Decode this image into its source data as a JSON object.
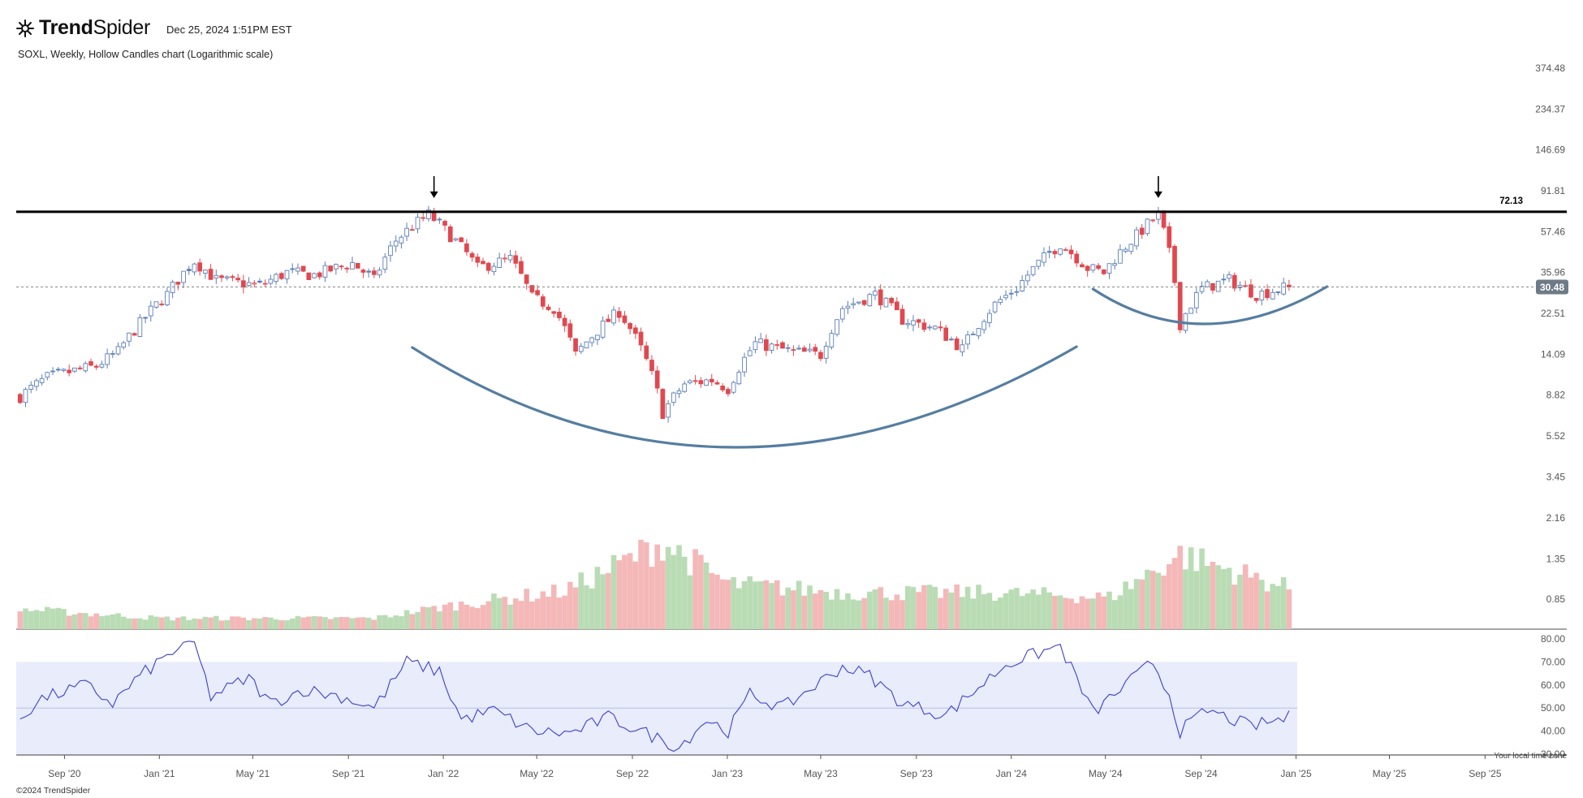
{
  "header": {
    "logo_text_bold": "Trend",
    "logo_text_rest": "Spider",
    "timestamp": "Dec 25, 2024 1:51PM EST",
    "subtitle": "SOXL, Weekly, Hollow Candles chart (Logarithmic scale)"
  },
  "footer": {
    "copyright": "©2024 TrendSpider",
    "timezone_note": "Your local time zone"
  },
  "colors": {
    "up": "#5b7fb8",
    "down": "#e0484f",
    "vol_up": "#b9dcb4",
    "vol_down": "#f4b8b8",
    "rsi_line": "#4040c8",
    "rsi_band": "#e8ecfb",
    "arc": "#557ea0",
    "resistance": "#000000",
    "price_badge": "#6e7a85"
  },
  "chart_data": {
    "type": "candlestick",
    "symbol": "SOXL",
    "interval": "Weekly",
    "scale": "log",
    "y_ticks": [
      "374.48",
      "234.37",
      "146.69",
      "91.81",
      "57.46",
      "35.96",
      "22.51",
      "14.09",
      "8.82",
      "5.52",
      "3.45",
      "2.16",
      "1.35",
      "0.85"
    ],
    "x_ticks": [
      "Sep '20",
      "Jan '21",
      "May '21",
      "Sep '21",
      "Jan '22",
      "May '22",
      "Sep '22",
      "Jan '23",
      "May '23",
      "Sep '23",
      "Jan '24",
      "May '24",
      "Sep '24",
      "Jan '25",
      "May '25",
      "Sep '25"
    ],
    "resistance_level": "72.13",
    "last_price": "30.48",
    "close_series_anchors": [
      [
        "2020-07-06",
        8.7
      ],
      [
        "2020-08-10",
        10.8
      ],
      [
        "2020-09-07",
        11.5
      ],
      [
        "2020-10-12",
        12.3
      ],
      [
        "2020-11-09",
        14.5
      ],
      [
        "2020-12-07",
        20
      ],
      [
        "2021-01-11",
        28
      ],
      [
        "2021-02-15",
        41
      ],
      [
        "2021-03-15",
        33
      ],
      [
        "2021-05-10",
        31
      ],
      [
        "2021-06-14",
        36
      ],
      [
        "2021-07-19",
        35
      ],
      [
        "2021-09-06",
        40
      ],
      [
        "2021-10-04",
        33
      ],
      [
        "2021-11-01",
        52
      ],
      [
        "2021-12-13",
        70
      ],
      [
        "2022-01-10",
        55
      ],
      [
        "2022-02-14",
        38
      ],
      [
        "2022-03-28",
        42
      ],
      [
        "2022-04-25",
        27
      ],
      [
        "2022-05-23",
        24
      ],
      [
        "2022-06-20",
        14
      ],
      [
        "2022-08-15",
        23
      ],
      [
        "2022-09-12",
        15
      ],
      [
        "2022-10-10",
        7.2
      ],
      [
        "2022-11-07",
        10
      ],
      [
        "2022-12-12",
        10.5
      ],
      [
        "2023-01-02",
        9.5
      ],
      [
        "2023-02-06",
        16
      ],
      [
        "2023-03-27",
        14.5
      ],
      [
        "2023-05-01",
        14
      ],
      [
        "2023-05-29",
        24
      ],
      [
        "2023-07-10",
        28
      ],
      [
        "2023-08-14",
        21
      ],
      [
        "2023-09-25",
        19
      ],
      [
        "2023-10-30",
        15
      ],
      [
        "2023-12-11",
        25
      ],
      [
        "2024-01-08",
        30
      ],
      [
        "2024-03-04",
        50
      ],
      [
        "2024-04-08",
        38
      ],
      [
        "2024-04-29",
        36
      ],
      [
        "2024-06-10",
        55
      ],
      [
        "2024-07-08",
        70
      ],
      [
        "2024-08-05",
        20
      ],
      [
        "2024-09-02",
        30
      ],
      [
        "2024-10-07",
        33
      ],
      [
        "2024-11-11",
        28
      ],
      [
        "2024-12-23",
        30.48
      ]
    ],
    "volume_relative_series_anchors": [
      [
        "2020-07-06",
        0.22
      ],
      [
        "2021-01-04",
        0.12
      ],
      [
        "2021-10-04",
        0.12
      ],
      [
        "2022-01-03",
        0.25
      ],
      [
        "2022-06-06",
        0.42
      ],
      [
        "2022-10-10",
        0.95
      ],
      [
        "2023-01-02",
        0.5
      ],
      [
        "2023-06-05",
        0.4
      ],
      [
        "2023-12-04",
        0.4
      ],
      [
        "2024-05-06",
        0.35
      ],
      [
        "2024-08-05",
        0.82
      ],
      [
        "2024-12-23",
        0.45
      ]
    ],
    "rsi_axis": [
      "80.00",
      "70.00",
      "60.00",
      "50.00",
      "40.00",
      "30.00"
    ],
    "rsi_band": [
      30,
      70
    ],
    "rsi_midline": 50,
    "rsi_series_anchors": [
      [
        "2020-07-06",
        46
      ],
      [
        "2020-08-03",
        54
      ],
      [
        "2020-09-28",
        60
      ],
      [
        "2020-11-02",
        52
      ],
      [
        "2020-12-07",
        64
      ],
      [
        "2021-01-25",
        76
      ],
      [
        "2021-02-15",
        78
      ],
      [
        "2021-03-08",
        55
      ],
      [
        "2021-04-26",
        63
      ],
      [
        "2021-05-24",
        52
      ],
      [
        "2021-07-05",
        58
      ],
      [
        "2021-08-23",
        55
      ],
      [
        "2021-10-04",
        50
      ],
      [
        "2021-11-15",
        70
      ],
      [
        "2021-12-27",
        66
      ],
      [
        "2022-01-24",
        45
      ],
      [
        "2022-03-07",
        49
      ],
      [
        "2022-04-25",
        40
      ],
      [
        "2022-06-13",
        39
      ],
      [
        "2022-08-01",
        46
      ],
      [
        "2022-09-26",
        38
      ],
      [
        "2022-10-31",
        33
      ],
      [
        "2022-12-05",
        45
      ],
      [
        "2023-01-02",
        40
      ],
      [
        "2023-01-30",
        56
      ],
      [
        "2023-03-13",
        50
      ],
      [
        "2023-05-29",
        68
      ],
      [
        "2023-07-03",
        64
      ],
      [
        "2023-08-14",
        52
      ],
      [
        "2023-10-09",
        47
      ],
      [
        "2023-11-13",
        57
      ],
      [
        "2023-12-25",
        69
      ],
      [
        "2024-03-04",
        77
      ],
      [
        "2024-04-15",
        48
      ],
      [
        "2024-05-20",
        58
      ],
      [
        "2024-07-01",
        70
      ],
      [
        "2024-07-22",
        56
      ],
      [
        "2024-08-05",
        40
      ],
      [
        "2024-09-09",
        49
      ],
      [
        "2024-11-04",
        42
      ],
      [
        "2024-12-23",
        46
      ]
    ],
    "annotations": [
      {
        "type": "arrow-down",
        "date": "2021-12-20"
      },
      {
        "type": "arrow-down",
        "date": "2024-07-08"
      },
      {
        "type": "horizontal-line",
        "value": 72.13
      },
      {
        "type": "arc",
        "from_date": "2021-11-22",
        "bottom_date": "2023-01-02",
        "to_date": "2024-03-25"
      },
      {
        "type": "arc",
        "from_date": "2024-04-15",
        "bottom_date": "2024-09-02",
        "to_date": "2025-02-10"
      }
    ]
  }
}
